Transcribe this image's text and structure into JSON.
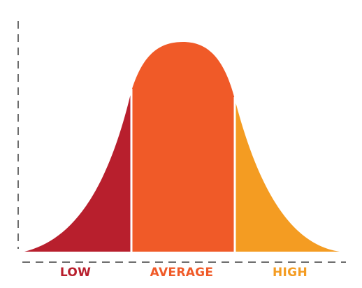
{
  "diagram": {
    "type": "bell-curve",
    "regions": [
      {
        "key": "low",
        "label": "LOW",
        "color": "#b81f2d"
      },
      {
        "key": "average",
        "label": "AVERAGE",
        "color": "#f05a28"
      },
      {
        "key": "high",
        "label": "HIGH",
        "color": "#f49c22"
      }
    ],
    "axis_color": "#6d6d6d"
  }
}
